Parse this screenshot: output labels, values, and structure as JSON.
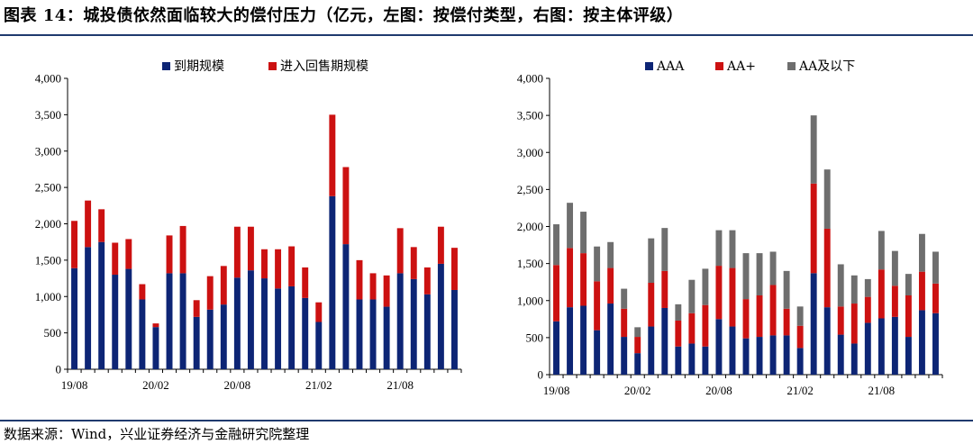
{
  "title": "图表 14：城投债依然面临较大的偿付压力（亿元，左图：按偿付类型，右图：按主体评级）",
  "source": "数据来源：Wind，兴业证券经济与金融研究院整理",
  "chart_data": [
    {
      "type": "bar",
      "stacked": true,
      "grid": false,
      "legend": "top",
      "ylim": [
        0,
        4000
      ],
      "y_ticks": [
        "0",
        "500",
        "1,000",
        "1,500",
        "2,000",
        "2,500",
        "3,000",
        "3,500",
        "4,000"
      ],
      "x_tick_labels": [
        {
          "index": 0,
          "label": "19/08"
        },
        {
          "index": 6,
          "label": "20/02"
        },
        {
          "index": 12,
          "label": "20/08"
        },
        {
          "index": 18,
          "label": "21/02"
        },
        {
          "index": 24,
          "label": "21/08"
        }
      ],
      "colors": [
        "#0d2575",
        "#cc1111"
      ],
      "series": [
        {
          "name": "到期规模",
          "values": [
            1390,
            1680,
            1750,
            1300,
            1380,
            960,
            580,
            1320,
            1320,
            720,
            820,
            890,
            1260,
            1360,
            1250,
            1110,
            1140,
            980,
            650,
            2380,
            1720,
            960,
            960,
            860,
            1320,
            1240,
            1030,
            1450,
            1090
          ]
        },
        {
          "name": "进入回售期规模",
          "values": [
            650,
            640,
            450,
            440,
            410,
            210,
            50,
            520,
            650,
            230,
            460,
            530,
            700,
            600,
            400,
            540,
            550,
            420,
            270,
            1120,
            1060,
            540,
            360,
            430,
            620,
            440,
            370,
            510,
            580
          ]
        }
      ]
    },
    {
      "type": "bar",
      "stacked": true,
      "grid": false,
      "legend": "top",
      "ylim": [
        0,
        4000
      ],
      "y_ticks": [
        "0",
        "500",
        "1,000",
        "1,500",
        "2,000",
        "2,500",
        "3,000",
        "3,500",
        "4,000"
      ],
      "x_tick_labels": [
        {
          "index": 0,
          "label": "19/08"
        },
        {
          "index": 6,
          "label": "20/02"
        },
        {
          "index": 12,
          "label": "20/08"
        },
        {
          "index": 18,
          "label": "21/02"
        },
        {
          "index": 24,
          "label": "21/08"
        }
      ],
      "colors": [
        "#0d2575",
        "#cc1111",
        "#6e6e6e"
      ],
      "series": [
        {
          "name": "AAA",
          "values": [
            720,
            910,
            930,
            600,
            960,
            510,
            290,
            650,
            900,
            380,
            420,
            380,
            750,
            650,
            490,
            510,
            530,
            530,
            360,
            1370,
            910,
            540,
            420,
            700,
            760,
            780,
            510,
            870,
            830
          ]
        },
        {
          "name": "AA+",
          "values": [
            760,
            800,
            710,
            660,
            480,
            380,
            220,
            590,
            500,
            350,
            410,
            560,
            720,
            790,
            530,
            560,
            680,
            360,
            300,
            1210,
            1060,
            380,
            540,
            350,
            660,
            420,
            560,
            520,
            400
          ]
        },
        {
          "name": "AA及以下",
          "values": [
            550,
            610,
            560,
            470,
            350,
            270,
            130,
            600,
            580,
            220,
            450,
            490,
            480,
            510,
            620,
            570,
            450,
            510,
            260,
            920,
            800,
            570,
            380,
            240,
            520,
            470,
            290,
            510,
            430
          ]
        }
      ]
    }
  ]
}
